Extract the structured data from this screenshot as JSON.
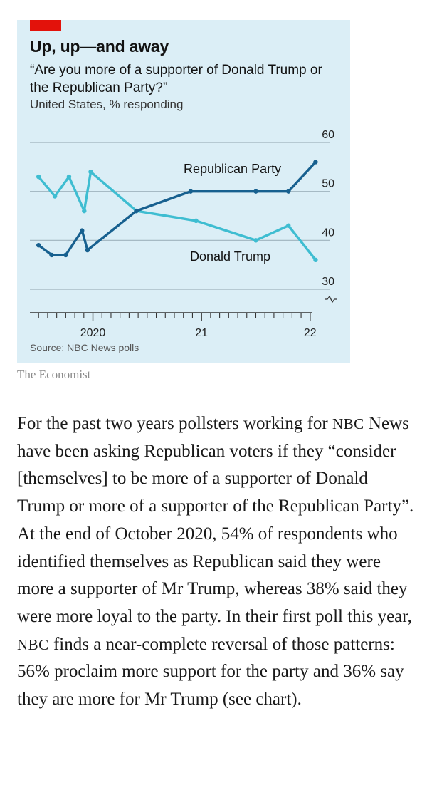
{
  "chart_data": {
    "type": "line",
    "title": "Up, up—and away",
    "subtitle": "“Are you more of a supporter of Donald Trump or the Republican Party?”",
    "unit_label": "United States, % responding",
    "source": "Source: NBC News polls",
    "y_ticks": [
      "60",
      "50",
      "40",
      "30"
    ],
    "y_tick_values": [
      60,
      50,
      40,
      30
    ],
    "ylim": [
      30,
      60
    ],
    "y_axis_position": "right",
    "axis_break": true,
    "x_tick_labels": [
      "2020",
      "21",
      "22"
    ],
    "x_tick_values": [
      2020.0,
      2021.0,
      2022.0
    ],
    "x_range": [
      2019.42,
      2022.08
    ],
    "series": [
      {
        "name": "Republican Party",
        "color": "#17608f",
        "x": [
          2019.5,
          2019.62,
          2019.75,
          2019.9,
          2019.95,
          2020.4,
          2020.9,
          2021.5,
          2021.8,
          2022.05
        ],
        "values": [
          39,
          37,
          37,
          42,
          38,
          46,
          50,
          50,
          50,
          56
        ]
      },
      {
        "name": "Donald Trump",
        "color": "#3ebdd1",
        "x": [
          2019.5,
          2019.65,
          2019.78,
          2019.92,
          2019.98,
          2020.4,
          2020.95,
          2021.5,
          2021.8,
          2022.05
        ],
        "values": [
          53,
          49,
          53,
          46,
          54,
          46,
          44,
          40,
          43,
          36
        ]
      }
    ]
  },
  "publisher": "The Economist",
  "article": {
    "part1": "For the past two years pollsters working for ",
    "nbc1": "NBC",
    "part2": " News have been asking Republican voters if they “consider [themselves] to be more of a supporter of Donald Trump or more of a supporter of the Republican Party”. At the end of October 2020, 54% of respondents who identified themselves as Republican said they were more a supporter of Mr Trump, whereas 38% said they were more loyal to the party. In their first poll this year, ",
    "nbc2": "NBC",
    "part3": " finds a near-complete reversal of those patterns: 56% proclaim more support for the party and 36% say they are more for Mr Trump (see chart)."
  }
}
